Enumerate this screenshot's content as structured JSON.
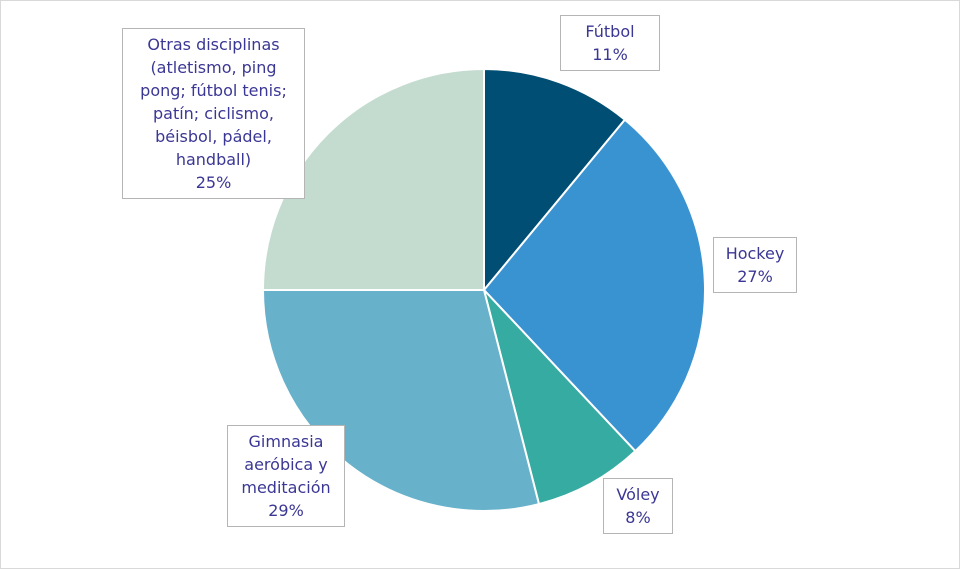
{
  "chart_data": {
    "type": "pie",
    "categories": [
      "Fútbol",
      "Hockey",
      "Vóley",
      "Gimnasia aeróbica y meditación",
      "Otras disciplinas (atletismo, ping pong; fútbol tenis; patín; ciclismo, béisbol, pádel, handball)"
    ],
    "values": [
      11,
      27,
      8,
      29,
      25
    ],
    "value_labels": [
      "11%",
      "27%",
      "8%",
      "29%",
      "25%"
    ],
    "colors": [
      "#004e73",
      "#3a93d1",
      "#36aba1",
      "#67b1ca",
      "#c4dbcf"
    ]
  }
}
